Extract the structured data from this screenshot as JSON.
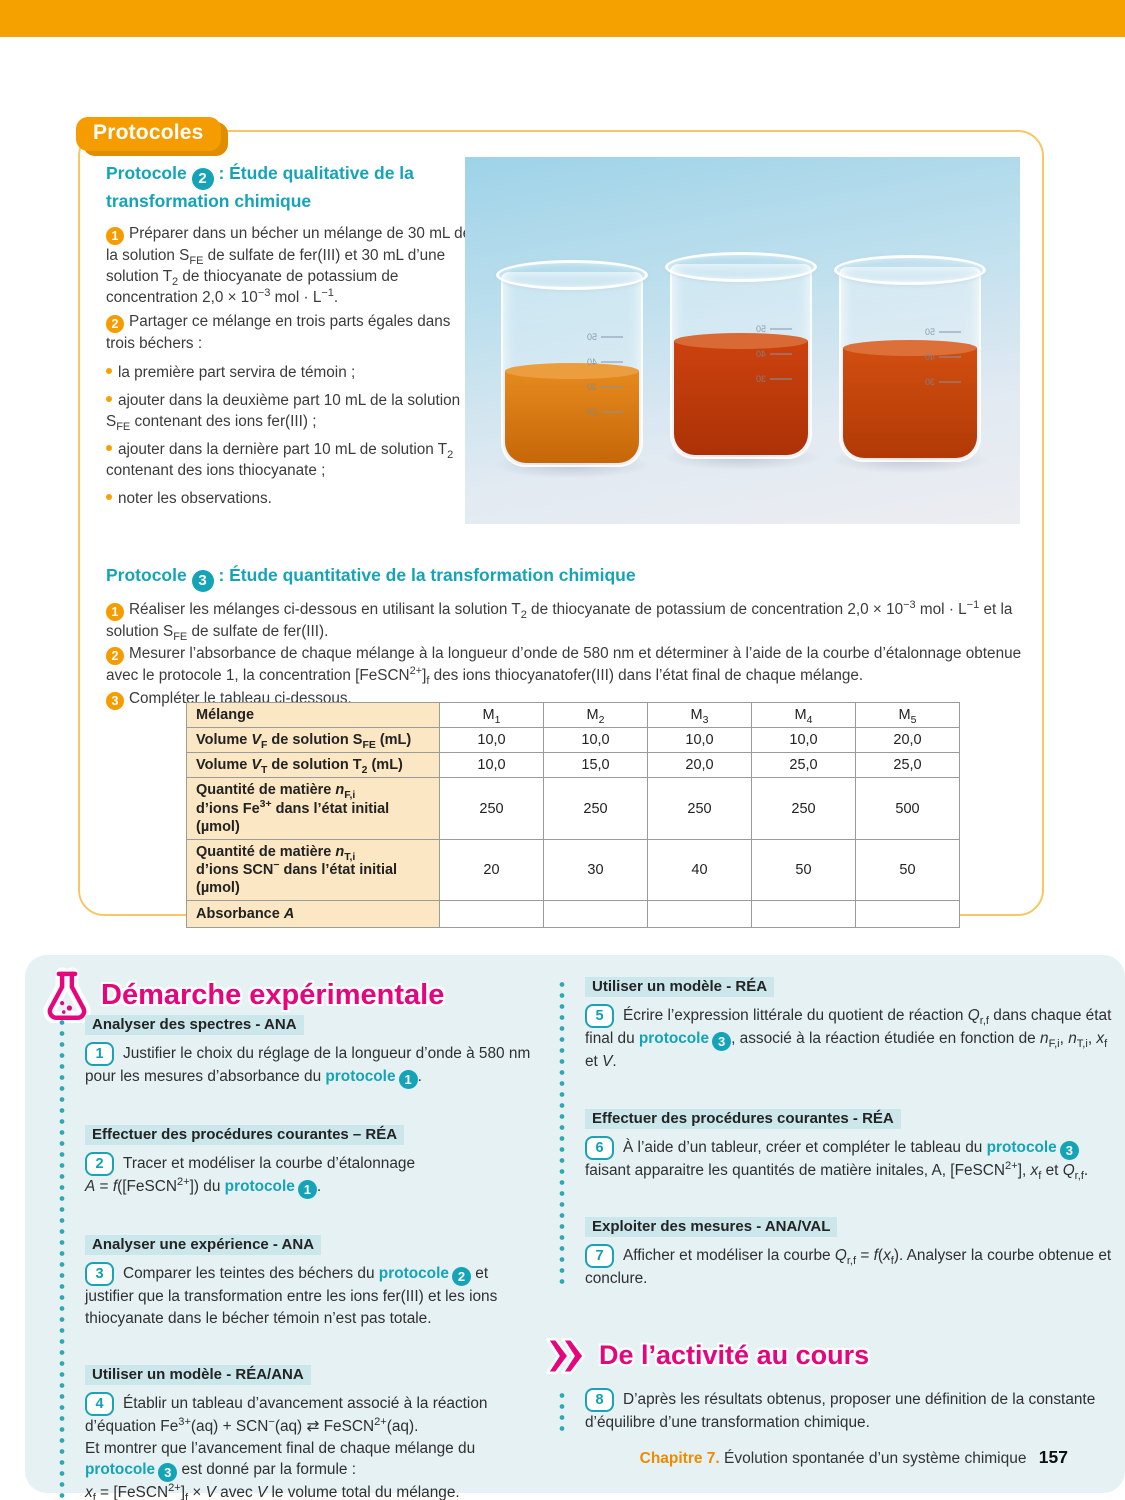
{
  "colors": {
    "orange": "#F5A201",
    "orange_badge": "#F59C00",
    "teal": "#15A4B7",
    "magenta": "#E5067E",
    "panel_blue": "#E6F1F4",
    "label_highlight": "#CBE7EB",
    "table_cream": "#FBE7C3"
  },
  "icons": {
    "flask_icon": "erlenmeyer-flask",
    "chevron_icon": "double-chevron-right"
  },
  "protocols_panel": {
    "badge": "Protocoles",
    "protocol2": {
      "title": "Protocole {{tnum:2}} : Étude qualitative de la transformation chimique",
      "steps": [
        {
          "num": "1",
          "text": "Préparer dans un bécher un mélange de 30 mL de la solution S_{FE} de sulfate de fer(III) et 30 mL d’une solution T_{2} de thiocyanate de potassium de concentration 2,0 × 10^{−3} mol · L^{−1}."
        },
        {
          "num": "2",
          "text": "Partager ce mélange en trois parts égales dans trois béchers :"
        }
      ],
      "bullets": [
        "la première part servira de témoin ;",
        "ajouter dans la deuxième part 10 mL de la solution S_{FE} contenant des ions fer(III) ;",
        "ajouter dans la dernière part 10 mL de solution T_{2} contenant des ions thiocyanate ;",
        "noter les observations."
      ]
    },
    "protocol3": {
      "title": "Protocole {{tnum:3}} : Étude quantitative de la transformation chimique",
      "steps": [
        {
          "num": "1",
          "text": "Réaliser les mélanges ci-dessous en utilisant la solution T_{2} de thiocyanate de potassium de concentration 2,0 × 10^{−3} mol · L^{−1} et la solution S_{FE} de sulfate de fer(III)."
        },
        {
          "num": "2",
          "text": "Mesurer l’absorbance de chaque mélange à la longueur d’onde de 580 nm et déterminer à l’aide de la courbe d’étalonnage obtenue avec le protocole 1, la concentration [FeSCN^{2+}]_{f} des ions thiocyanatofer(III) dans l’état final de chaque mélange."
        },
        {
          "num": "3",
          "text": "Compléter le tableau ci-dessous."
        }
      ]
    },
    "table": {
      "header_label": "Mélange",
      "header_cols": [
        "M_{1}",
        "M_{2}",
        "M_{3}",
        "M_{4}",
        "M_{5}"
      ],
      "rows": [
        {
          "label": "Volume *V*_{F} de solution S_{FE} (mL)",
          "values": [
            "10,0",
            "10,0",
            "10,0",
            "10,0",
            "20,0"
          ]
        },
        {
          "label": "Volume *V*_{T} de solution T_{2} (mL)",
          "values": [
            "10,0",
            "15,0",
            "20,0",
            "25,0",
            "25,0"
          ]
        },
        {
          "label": "Quantité de matière *n*_{F,i}\nd’ions Fe^{3+} dans l’état initial (µmol)",
          "values": [
            "250",
            "250",
            "250",
            "250",
            "500"
          ]
        },
        {
          "label": "Quantité de matière *n*_{T,i}\nd’ions SCN^{−} dans l’état initial (µmol)",
          "values": [
            "20",
            "30",
            "40",
            "50",
            "50"
          ]
        },
        {
          "label": "Absorbance *A*",
          "values": [
            "",
            "",
            "",
            "",
            ""
          ]
        }
      ]
    }
  },
  "photo": {
    "graduations": [
      "50",
      "40",
      "30",
      "20"
    ]
  },
  "demarche": {
    "title": "Démarche expérimentale",
    "left": {
      "label1": "Analyser des spectres - ANA",
      "q1": {
        "num": "1",
        "text": "Justifier le choix du réglage de la longueur d’onde à 580 nm pour les mesures d’absorbance du {{proto:1}}."
      },
      "label2": "Effectuer des procédures courantes – RÉA",
      "q2": {
        "num": "2",
        "text": "Tracer et modéliser la courbe d’étalonnage\n*A* = *f*([FeSCN^{2+}]) du {{proto:1}}."
      },
      "label3": "Analyser une expérience - ANA",
      "q3": {
        "num": "3",
        "text": "Comparer les teintes des béchers du {{proto:2}} et justifier que la transformation entre les ions fer(III) et les ions thiocyanate dans le bécher témoin n’est pas totale."
      },
      "label4": "Utiliser un modèle - RÉA/ANA",
      "q4": {
        "num": "4",
        "text": "Établir un tableau d’avancement associé à la réaction d’équation Fe^{3+}(aq) + SCN^{−}(aq) ⇄ FeSCN^{2+}(aq).\nEt montrer que l’avancement final de chaque mélange du {{proto:3}} est donné par la formule :\n*x*_{f} = [FeSCN^{2+}]_{f} × *V* avec *V* le volume total du mélange."
      }
    },
    "right": {
      "label5": "Utiliser un modèle - RÉA",
      "q5": {
        "num": "5",
        "text": "Écrire l’expression littérale du quotient de réaction *Q*_{r,f} dans chaque état final du {{proto:3}}, associé à la réaction étudiée en fonction de *n*_{F,i}, *n*_{T,i}, *x*_{f} et *V*."
      },
      "label6": "Effectuer des procédures courantes - RÉA",
      "q6": {
        "num": "6",
        "text": "À l’aide d’un tableur, créer et compléter le tableau du {{proto:3}} faisant apparaitre les quantités de matière initales, A, [FeSCN^{2+}], *x*_{f} et *Q*_{r,f}."
      },
      "label7": "Exploiter des mesures - ANA/VAL",
      "q7": {
        "num": "7",
        "text": "Afficher et modéliser la courbe *Q*_{r,f} = *f*(*x*_{f}). Analyser la courbe obtenue et conclure."
      }
    },
    "activity": {
      "title": "De l’activité au cours",
      "q8": {
        "num": "8",
        "text": "D’après les résultats obtenus, proposer une définition de la constante d’équilibre d’une transformation chimique."
      }
    }
  },
  "footer": {
    "chapter_label": "Chapitre 7.",
    "chapter_title": "Évolution spontanée d’un système chimique",
    "page_number": "157"
  }
}
